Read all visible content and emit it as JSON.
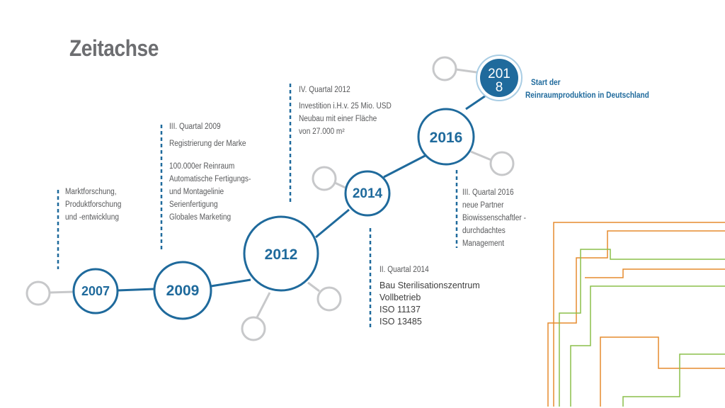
{
  "title": "Zeitachse",
  "milestones": [
    {
      "year": "2007",
      "text": [
        "Marktforschung,",
        "Produktforschung",
        "und -entwicklung"
      ]
    },
    {
      "year": "2009",
      "quarter": "III. Quartal 2009",
      "text": [
        "Registrierung der Marke"
      ],
      "text2": [
        "100.000er Reinraum",
        "Automatische Fertigungs-",
        "und Montagelinie",
        "Serienfertigung",
        "Globales Marketing"
      ]
    },
    {
      "year": "2012",
      "quarter": "IV. Quartal 2012",
      "text": [
        "Investition i.H.v. 25 Mio. USD",
        "Neubau mit einer Fläche",
        "von 27.000 m²"
      ]
    },
    {
      "year": "2014",
      "quarter": "II. Quartal 2014",
      "text": [
        "Bau Sterilisationszentrum",
        "Vollbetrieb",
        "ISO 11137",
        "ISO 13485"
      ]
    },
    {
      "year": "2016",
      "quarter": "III. Quartal 2016",
      "text": [
        "neue Partner",
        "Biowissenschaftler -",
        "durchdachtes",
        "Management"
      ]
    },
    {
      "year_line1": "201",
      "year_line2": "8",
      "text": [
        "Start der",
        "Reinraumproduktion in Deutschland"
      ]
    }
  ],
  "colors": {
    "primary": "#1f6a9c",
    "grey_circle": "#c7c8ca",
    "orange": "#e58b2e",
    "green": "#8cbf4a"
  }
}
